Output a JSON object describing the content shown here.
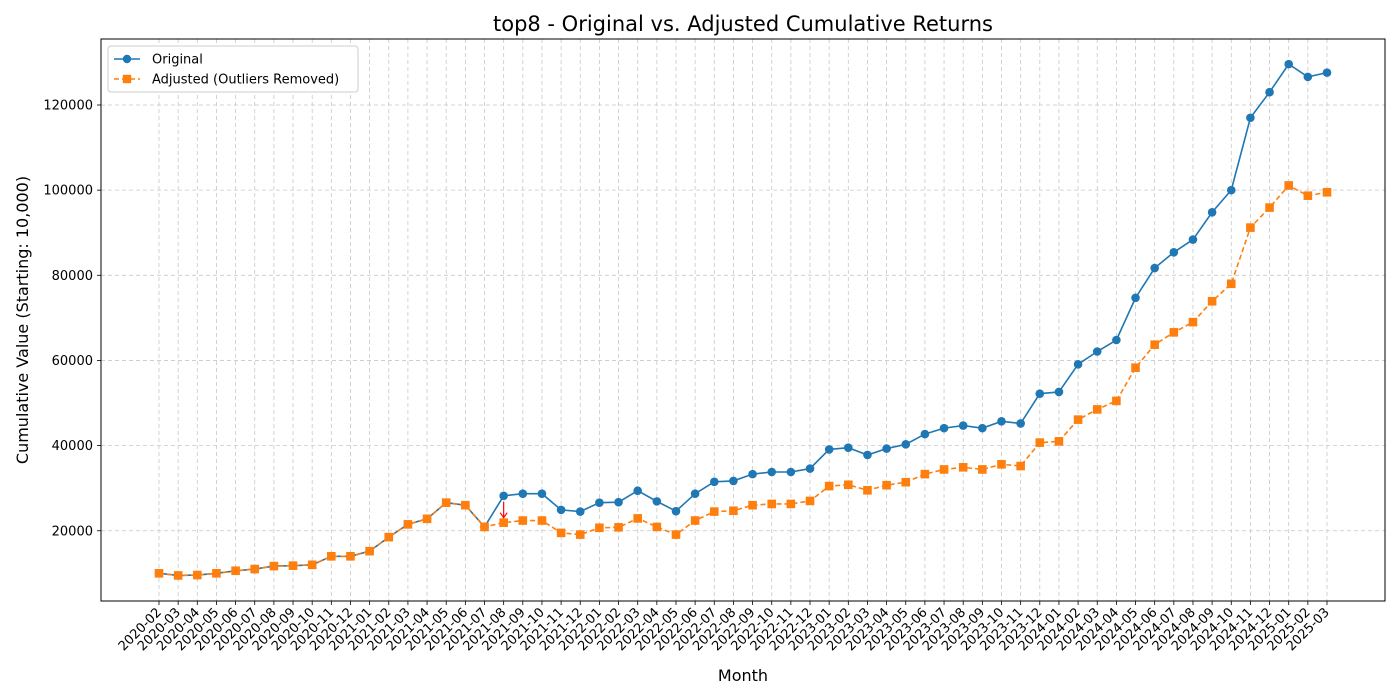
{
  "chart_data": {
    "type": "line",
    "title": "top8 - Original vs. Adjusted Cumulative Returns",
    "xlabel": "Month",
    "ylabel": "Cumulative Value (Starting: 10,000)",
    "ylim": [
      3500,
      135500
    ],
    "yticks": [
      20000,
      40000,
      60000,
      80000,
      100000,
      120000
    ],
    "grid": true,
    "legend_position": "top-left",
    "categories": [
      "2020-02",
      "2020-03",
      "2020-04",
      "2020-05",
      "2020-06",
      "2020-07",
      "2020-08",
      "2020-09",
      "2020-10",
      "2020-11",
      "2020-12",
      "2021-01",
      "2021-02",
      "2021-03",
      "2021-04",
      "2021-05",
      "2021-06",
      "2021-07",
      "2021-08",
      "2021-09",
      "2021-10",
      "2021-11",
      "2021-12",
      "2022-01",
      "2022-02",
      "2022-03",
      "2022-04",
      "2022-05",
      "2022-06",
      "2022-07",
      "2022-08",
      "2022-09",
      "2022-10",
      "2022-11",
      "2022-12",
      "2023-01",
      "2023-02",
      "2023-03",
      "2023-04",
      "2023-05",
      "2023-06",
      "2023-07",
      "2023-08",
      "2023-09",
      "2023-10",
      "2023-11",
      "2023-12",
      "2024-01",
      "2024-02",
      "2024-03",
      "2024-04",
      "2024-05",
      "2024-06",
      "2024-07",
      "2024-08",
      "2024-09",
      "2024-10",
      "2024-11",
      "2024-12",
      "2025-01",
      "2025-02",
      "2025-03"
    ],
    "series": [
      {
        "name": "Original",
        "color": "#1f77b4",
        "marker": "circle",
        "linestyle": "solid",
        "values": [
          10000,
          9500,
          9600,
          10000,
          10600,
          11000,
          11700,
          11800,
          12000,
          14000,
          14000,
          15200,
          18500,
          21500,
          22800,
          26600,
          26000,
          20900,
          28200,
          28700,
          28700,
          24900,
          24500,
          26600,
          26700,
          29400,
          26900,
          24600,
          28700,
          31500,
          31700,
          33300,
          33800,
          33800,
          34600,
          39100,
          39500,
          37800,
          39300,
          40300,
          42700,
          44100,
          44700,
          44100,
          45700,
          45200,
          52200,
          52600,
          59100,
          62100,
          64800,
          74700,
          81700,
          85400,
          88400,
          94800,
          100000,
          117000,
          123000,
          129600,
          126600,
          127600
        ]
      },
      {
        "name": "Adjusted (Outliers Removed)",
        "color": "#ff7f0e",
        "marker": "square",
        "linestyle": "dashed",
        "values": [
          10000,
          9500,
          9600,
          10000,
          10600,
          11000,
          11700,
          11800,
          12000,
          14000,
          14000,
          15200,
          18500,
          21500,
          22800,
          26600,
          26000,
          20900,
          21900,
          22400,
          22400,
          19500,
          19100,
          20700,
          20800,
          22900,
          20900,
          19100,
          22400,
          24500,
          24700,
          26000,
          26300,
          26300,
          27000,
          30500,
          30800,
          29500,
          30700,
          31400,
          33300,
          34400,
          34900,
          34400,
          35600,
          35200,
          40700,
          41000,
          46100,
          48500,
          50500,
          58300,
          63700,
          66600,
          69000,
          73900,
          78000,
          91200,
          95900,
          101100,
          98700,
          99500
        ]
      }
    ],
    "annotations": [
      {
        "type": "arrow",
        "category": "2021-08",
        "from": 28200,
        "to": 21900,
        "color": "#ff0000"
      }
    ]
  }
}
